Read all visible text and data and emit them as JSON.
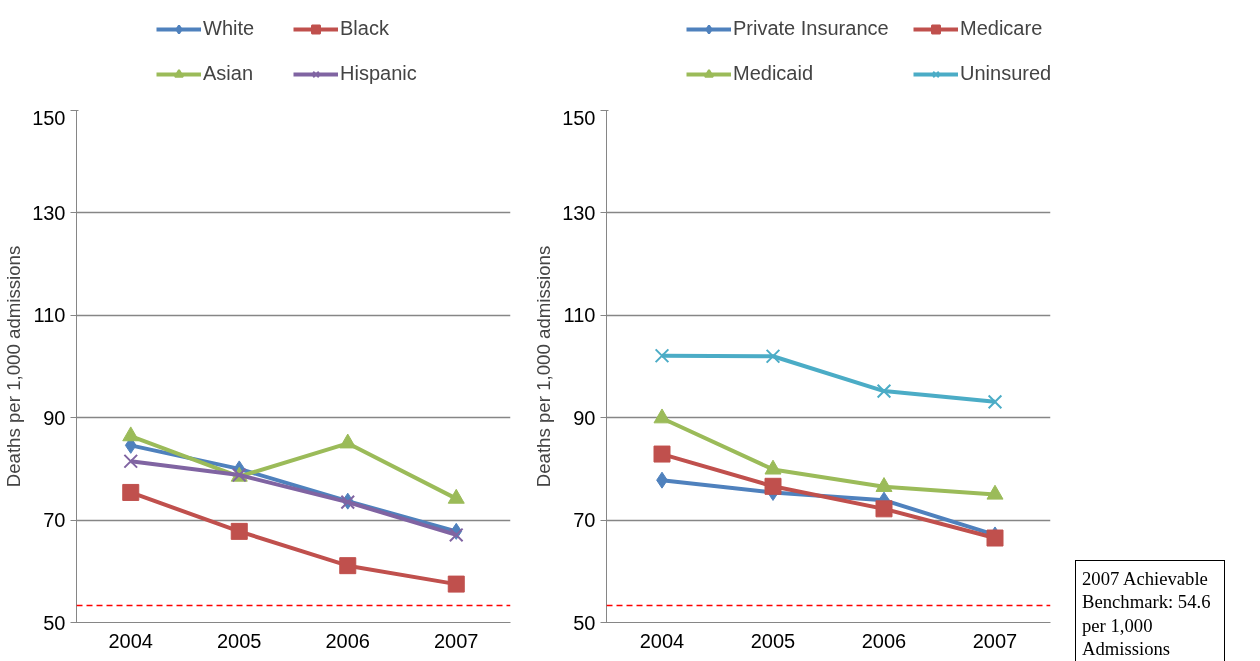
{
  "chart_data": [
    {
      "type": "line",
      "categories": [
        "2004",
        "2005",
        "2006",
        "2007"
      ],
      "ylabel": "Deaths per 1,000 admissions",
      "ylim": [
        50,
        150
      ],
      "yticks": [
        50,
        70,
        90,
        110,
        130,
        150
      ],
      "grid": "y",
      "legend": "top",
      "line_style": "solid",
      "series": [
        {
          "name": "White",
          "color": "#4f81bd",
          "marker": "diamond",
          "values": [
            84.6,
            80.0,
            73.7,
            67.8
          ]
        },
        {
          "name": "Black",
          "color": "#c0504d",
          "marker": "square",
          "values": [
            75.4,
            67.8,
            61.1,
            57.5
          ]
        },
        {
          "name": "Asian",
          "color": "#9bbb59",
          "marker": "triangle",
          "values": [
            86.4,
            78.5,
            85.0,
            74.2
          ]
        },
        {
          "name": "Hispanic",
          "color": "#8064a2",
          "marker": "cross",
          "values": [
            81.5,
            78.8,
            73.5,
            67.1
          ]
        }
      ],
      "ref_lines": [
        {
          "axis": "y",
          "value": 53.3,
          "color": "#ff0000",
          "line_style": "dashed"
        }
      ]
    },
    {
      "type": "line",
      "categories": [
        "2004",
        "2005",
        "2006",
        "2007"
      ],
      "ylabel": "Deaths per 1,000 admissions",
      "ylim": [
        50,
        150
      ],
      "yticks": [
        50,
        70,
        90,
        110,
        130,
        150
      ],
      "grid": "y",
      "legend": "top",
      "line_style": "solid",
      "series": [
        {
          "name": "Private Insurance",
          "color": "#4f81bd",
          "marker": "diamond",
          "values": [
            77.8,
            75.4,
            73.9,
            67.1
          ]
        },
        {
          "name": "Medicare",
          "color": "#c0504d",
          "marker": "square",
          "values": [
            82.9,
            76.6,
            72.2,
            66.5
          ]
        },
        {
          "name": "Medicaid",
          "color": "#9bbb59",
          "marker": "triangle",
          "values": [
            89.9,
            79.9,
            76.5,
            75.0
          ]
        },
        {
          "name": "Uninsured",
          "color": "#4bacc6",
          "marker": "cross",
          "values": [
            102.1,
            102.0,
            95.2,
            93.1
          ]
        }
      ],
      "ref_lines": [
        {
          "axis": "y",
          "value": 53.3,
          "color": "#ff0000",
          "line_style": "dashed"
        }
      ],
      "annotations": [
        "2007 Achievable Benchmark: 54.6 per 1,000 Admissions"
      ]
    }
  ]
}
